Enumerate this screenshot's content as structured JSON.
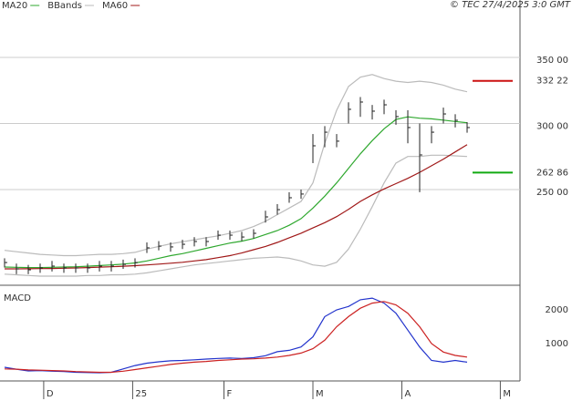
{
  "chart_data": {
    "type": "ohlc",
    "credit": "© TEC 27/4/2025 3:0 GMT",
    "xlim": [
      -0.385,
      43.46
    ],
    "xticks": [
      {
        "value": 3.3,
        "label": "D"
      },
      {
        "value": 10.8,
        "label": "25"
      },
      {
        "value": 18.5,
        "label": "F"
      },
      {
        "value": 26,
        "label": "M"
      },
      {
        "value": 33.5,
        "label": "A"
      },
      {
        "value": 41.8,
        "label": "M"
      }
    ],
    "ylim": [
      177.6,
      393.4
    ],
    "yticks": [
      {
        "value": 250,
        "label": "250 00"
      },
      {
        "value": 300,
        "label": "300 00"
      },
      {
        "value": 350,
        "label": "350 00"
      }
    ],
    "close": [
      194.8,
      190,
      189.3,
      190.7,
      192.1,
      190.7,
      190.7,
      190.7,
      192.1,
      192.1,
      193.4,
      194.8,
      205.9,
      207.2,
      206.6,
      208.6,
      210.7,
      210.7,
      215.5,
      215.5,
      214.1,
      216.9,
      229.3,
      234.8,
      243.8,
      246.6,
      283.1,
      293.4,
      286.6,
      310.7,
      316.2,
      309.3,
      314.1,
      305.2,
      296.9,
      276.2,
      293.4,
      307.2,
      302.4,
      296.9
    ],
    "high": [
      198,
      194,
      193,
      194,
      196,
      194,
      194,
      194,
      196,
      196,
      197,
      198,
      210,
      211,
      210,
      212,
      214,
      214,
      219,
      219,
      218,
      220,
      234,
      239,
      248,
      250,
      292,
      298,
      292,
      316,
      320,
      314,
      318,
      310,
      310,
      300,
      298,
      312,
      307,
      301
    ],
    "low": [
      191,
      186,
      186,
      187,
      188,
      187,
      187,
      187,
      188,
      188,
      190,
      191,
      202,
      204,
      203,
      205,
      207,
      207,
      212,
      212,
      211,
      213,
      225,
      231,
      240,
      243,
      270,
      282,
      282,
      300,
      305,
      303,
      307,
      299,
      285,
      248,
      285,
      300,
      297,
      293
    ],
    "overlays": [
      {
        "name": "MA20",
        "color": "#2fa82f",
        "values": [
          191.4,
          191.2,
          191,
          191,
          191.2,
          191.4,
          191.6,
          192,
          192.5,
          193,
          193.6,
          194.5,
          196,
          198,
          200,
          201.5,
          203.5,
          205.5,
          207.5,
          209.5,
          211,
          213,
          216,
          219,
          223,
          228,
          236,
          245,
          255,
          266,
          277,
          287,
          296,
          303,
          305,
          304,
          303.5,
          302.5,
          301.5,
          300.5
        ]
      },
      {
        "name": "BBands",
        "color": "#bbbbbb",
        "upper": [
          204,
          203,
          202,
          201,
          200.5,
          200,
          200,
          200.5,
          201,
          201,
          201.5,
          202.5,
          205,
          207,
          209,
          210.5,
          212,
          213.5,
          215,
          217,
          219,
          222,
          226,
          231,
          236,
          241,
          255,
          285,
          310,
          328,
          335,
          337,
          334,
          332,
          331,
          332,
          331,
          329,
          326,
          324
        ],
        "lower": [
          186,
          185.5,
          185,
          184.5,
          184.5,
          184.5,
          184.5,
          185,
          185,
          185.5,
          185.5,
          186,
          187,
          188.5,
          190,
          191.5,
          193,
          194,
          195,
          196,
          197,
          198,
          198.5,
          199,
          198,
          196,
          193,
          192,
          195,
          205,
          220,
          237,
          255,
          270,
          275,
          275,
          276,
          276,
          275.5,
          275
        ]
      },
      {
        "name": "MA60",
        "color": "#a01818",
        "values": [
          190,
          190,
          190.1,
          190.2,
          190.3,
          190.5,
          190.7,
          191,
          191.3,
          191.6,
          192,
          192.4,
          193,
          193.6,
          194.3,
          195,
          196,
          197,
          198.5,
          200,
          202,
          204.5,
          207,
          210,
          213.5,
          217,
          221,
          225,
          229.5,
          235,
          241,
          246,
          250.5,
          254.5,
          258.5,
          263,
          268,
          273,
          278.5,
          284
        ]
      }
    ],
    "annotations": [
      {
        "label": "332 22",
        "value": 332.22,
        "color": "#cc1111"
      },
      {
        "label": "262 86",
        "value": 262.86,
        "color": "#11aa11"
      }
    ],
    "macd": {
      "title": "MACD",
      "y2lim": [
        -108,
        2595
      ],
      "y2ticks": [
        1000,
        2000
      ],
      "series": [
        {
          "color": "#2233cc",
          "values": [
            297,
            240,
            190,
            200,
            180,
            170,
            150,
            140,
            135,
            150,
            250,
            350,
            420,
            460,
            490,
            500,
            520,
            540,
            560,
            570,
            560,
            580,
            640,
            760,
            800,
            900,
            1200,
            1800,
            2000,
            2100,
            2300,
            2350,
            2200,
            1900,
            1400,
            900,
            500,
            450,
            500,
            450
          ]
        },
        {
          "color": "#cc2222",
          "values": [
            250,
            240,
            220,
            210,
            200,
            190,
            170,
            160,
            150,
            150,
            180,
            230,
            280,
            330,
            380,
            420,
            450,
            470,
            500,
            520,
            540,
            550,
            570,
            600,
            650,
            720,
            850,
            1100,
            1500,
            1800,
            2050,
            2200,
            2250,
            2150,
            1900,
            1500,
            1000,
            750,
            650,
            600
          ]
        }
      ]
    }
  }
}
